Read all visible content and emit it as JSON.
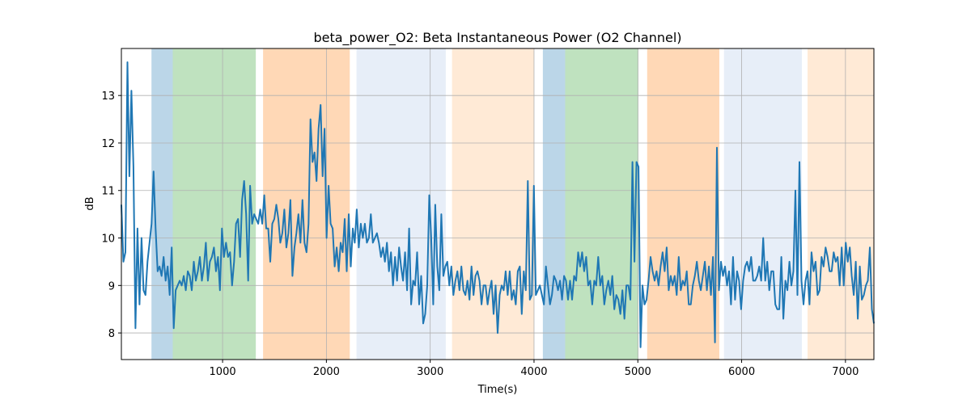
{
  "chart_data": {
    "type": "line",
    "title": "beta_power_O2: Beta Instantaneous Power (O2 Channel)",
    "xlabel": "Time(s)",
    "ylabel": "dB",
    "xlim": [
      25,
      7274
    ],
    "ylim": [
      7.44,
      13.99
    ],
    "grid": true,
    "xticks": [
      1000,
      2000,
      3000,
      4000,
      5000,
      6000,
      7000
    ],
    "yticks": [
      8,
      9,
      10,
      11,
      12,
      13
    ],
    "line_color": "#1f77b4",
    "spans": [
      {
        "start": 315,
        "end": 520,
        "color": "#1f77b4"
      },
      {
        "start": 520,
        "end": 1320,
        "color": "#2ca02c"
      },
      {
        "start": 1390,
        "end": 2225,
        "color": "#ff7f0e"
      },
      {
        "start": 2290,
        "end": 3150,
        "color": "#aec7e8"
      },
      {
        "start": 3210,
        "end": 4000,
        "color": "#ffbb78"
      },
      {
        "start": 4085,
        "end": 4300,
        "color": "#1f77b4"
      },
      {
        "start": 4300,
        "end": 5005,
        "color": "#2ca02c"
      },
      {
        "start": 5090,
        "end": 5785,
        "color": "#ff7f0e"
      },
      {
        "start": 5830,
        "end": 6580,
        "color": "#aec7e8"
      },
      {
        "start": 6635,
        "end": 7274,
        "color": "#ffbb78"
      }
    ],
    "series": [
      {
        "name": "beta_power_O2",
        "x_start": 25,
        "x_end": 7274,
        "values": [
          10.7,
          9.5,
          9.7,
          13.7,
          11.3,
          13.1,
          11.5,
          8.1,
          10.2,
          8.6,
          10.0,
          8.9,
          8.8,
          9.5,
          9.9,
          10.3,
          11.4,
          10.2,
          9.3,
          9.4,
          9.2,
          9.6,
          9.1,
          9.4,
          8.8,
          9.8,
          8.1,
          8.9,
          9.0,
          9.1,
          9.0,
          9.2,
          8.9,
          9.3,
          9.2,
          8.9,
          9.5,
          9.1,
          9.3,
          9.6,
          9.1,
          9.4,
          9.9,
          9.1,
          9.5,
          9.6,
          9.8,
          9.3,
          9.6,
          8.9,
          10.2,
          9.6,
          9.9,
          9.6,
          9.7,
          9.0,
          9.5,
          10.3,
          10.4,
          9.6,
          10.8,
          11.2,
          10.5,
          9.1,
          11.1,
          10.3,
          10.5,
          10.4,
          10.3,
          10.6,
          10.3,
          10.9,
          10.2,
          10.2,
          9.5,
          10.3,
          10.4,
          10.7,
          10.4,
          9.9,
          10.1,
          10.6,
          9.8,
          10.1,
          10.8,
          9.2,
          9.8,
          10.1,
          10.5,
          9.9,
          10.8,
          9.9,
          9.7,
          10.3,
          12.5,
          11.6,
          11.8,
          11.2,
          12.3,
          12.8,
          11.3,
          12.3,
          10.0,
          11.1,
          10.3,
          10.2,
          9.4,
          9.8,
          9.3,
          9.9,
          9.7,
          10.4,
          9.3,
          10.5,
          9.4,
          10.2,
          9.9,
          10.6,
          9.8,
          10.3,
          10.0,
          10.3,
          9.9,
          10.0,
          10.5,
          9.9,
          10.0,
          10.1,
          9.9,
          9.6,
          9.8,
          9.5,
          9.9,
          9.3,
          9.7,
          9.0,
          9.6,
          9.1,
          9.8,
          9.4,
          9.1,
          9.7,
          8.9,
          10.2,
          8.6,
          9.1,
          9.0,
          9.7,
          8.6,
          9.2,
          8.2,
          8.4,
          9.0,
          10.9,
          10.0,
          8.6,
          10.7,
          9.4,
          8.9,
          10.5,
          9.2,
          9.4,
          9.5,
          9.0,
          9.4,
          8.8,
          9.1,
          9.3,
          8.9,
          9.4,
          8.9,
          8.8,
          9.1,
          8.7,
          9.4,
          8.8,
          9.2,
          9.3,
          9.1,
          8.6,
          9.0,
          9.0,
          8.6,
          8.9,
          9.1,
          8.4,
          9.0,
          8.0,
          8.8,
          9.0,
          8.9,
          9.3,
          8.8,
          9.3,
          8.7,
          8.9,
          8.6,
          9.3,
          9.4,
          8.4,
          9.3,
          8.9,
          11.2,
          8.7,
          8.8,
          11.1,
          8.8,
          8.9,
          9.0,
          8.8,
          8.6,
          9.4,
          9.0,
          8.6,
          8.8,
          9.2,
          9.1,
          8.9,
          9.1,
          8.7,
          9.2,
          9.1,
          8.7,
          9.1,
          8.7,
          9.2,
          9.1,
          9.7,
          9.4,
          9.7,
          9.3,
          9.6,
          9.0,
          9.1,
          8.6,
          9.1,
          9.0,
          9.6,
          9.0,
          9.2,
          8.6,
          8.9,
          9.1,
          8.8,
          9.2,
          8.5,
          8.8,
          8.7,
          8.4,
          8.9,
          8.3,
          9.0,
          9.0,
          8.7,
          11.6,
          9.5,
          11.6,
          11.5,
          7.7,
          9.0,
          8.6,
          8.7,
          9.1,
          9.6,
          9.3,
          9.1,
          9.3,
          9.0,
          9.4,
          9.7,
          9.3,
          9.8,
          8.9,
          9.2,
          9.0,
          9.2,
          8.8,
          9.6,
          8.9,
          9.1,
          9.0,
          9.3,
          8.6,
          8.6,
          9.0,
          9.2,
          9.5,
          9.1,
          8.9,
          9.2,
          9.5,
          8.9,
          9.4,
          8.8,
          9.6,
          7.8,
          11.9,
          8.9,
          9.5,
          9.2,
          9.4,
          9.0,
          9.3,
          8.6,
          9.6,
          8.7,
          9.3,
          9.1,
          8.5,
          9.1,
          9.4,
          9.5,
          9.3,
          9.6,
          9.1,
          9.1,
          9.2,
          9.4,
          9.1,
          10.0,
          9.1,
          9.5,
          8.9,
          9.3,
          9.3,
          8.6,
          8.5,
          8.5,
          9.6,
          8.3,
          9.1,
          8.9,
          9.5,
          9.0,
          9.3,
          11.0,
          8.8,
          11.6,
          9.1,
          8.6,
          9.1,
          9.3,
          8.6,
          9.7,
          9.3,
          9.5,
          8.8,
          8.9,
          9.6,
          9.4,
          9.8,
          9.6,
          9.3,
          9.3,
          9.7,
          9.5,
          9.6,
          9.0,
          9.8,
          9.0,
          9.9,
          9.5,
          9.8,
          9.2,
          8.8,
          9.5,
          8.3,
          9.4,
          8.7,
          8.8,
          9.0,
          9.1,
          9.8,
          8.5,
          8.2
        ]
      }
    ]
  }
}
